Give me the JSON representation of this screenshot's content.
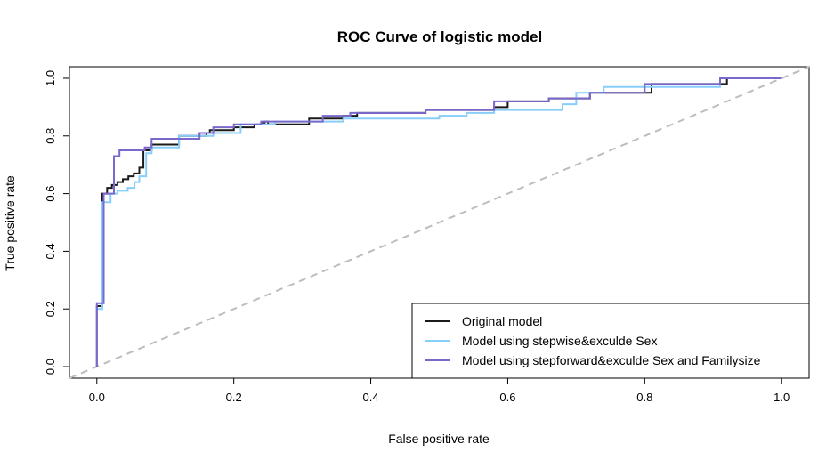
{
  "chart_data": {
    "type": "line",
    "title": "ROC Curve of logistic model",
    "xlabel": "False positive rate",
    "ylabel": "True positive rate",
    "xlim": [
      -0.04,
      1.04
    ],
    "ylim": [
      -0.04,
      1.04
    ],
    "xticks": [
      "0.0",
      "0.2",
      "0.4",
      "0.6",
      "0.8",
      "1.0"
    ],
    "yticks": [
      "0.0",
      "0.2",
      "0.4",
      "0.6",
      "0.8",
      "1.0"
    ],
    "grid": false,
    "legend_position": "bottom-right",
    "reference_line": {
      "x": [
        0,
        1
      ],
      "y": [
        0,
        1
      ],
      "color": "#bdbdbd",
      "style": "dashed"
    },
    "series": [
      {
        "name": "Original model",
        "color": "#1a1a1a",
        "x": [
          0,
          0,
          0.008,
          0.008,
          0.015,
          0.015,
          0.022,
          0.022,
          0.03,
          0.03,
          0.038,
          0.038,
          0.046,
          0.046,
          0.054,
          0.054,
          0.062,
          0.062,
          0.068,
          0.068,
          0.08,
          0.08,
          0.12,
          0.12,
          0.16,
          0.16,
          0.165,
          0.165,
          0.2,
          0.2,
          0.23,
          0.23,
          0.24,
          0.24,
          0.245,
          0.245,
          0.25,
          0.25,
          0.31,
          0.31,
          0.36,
          0.36,
          0.38,
          0.38,
          0.48,
          0.48,
          0.58,
          0.58,
          0.6,
          0.6,
          0.66,
          0.66,
          0.72,
          0.72,
          0.81,
          0.81,
          0.92,
          0.92,
          1.0
        ],
        "y": [
          0,
          0.21,
          0.21,
          0.6,
          0.6,
          0.62,
          0.62,
          0.63,
          0.63,
          0.64,
          0.64,
          0.65,
          0.65,
          0.66,
          0.66,
          0.67,
          0.67,
          0.69,
          0.69,
          0.75,
          0.75,
          0.77,
          0.77,
          0.8,
          0.8,
          0.81,
          0.81,
          0.82,
          0.82,
          0.83,
          0.83,
          0.84,
          0.84,
          0.845,
          0.845,
          0.85,
          0.85,
          0.84,
          0.84,
          0.86,
          0.86,
          0.87,
          0.87,
          0.88,
          0.88,
          0.89,
          0.89,
          0.9,
          0.9,
          0.92,
          0.92,
          0.93,
          0.93,
          0.95,
          0.95,
          0.98,
          0.98,
          1.0,
          1.0
        ]
      },
      {
        "name": "Model using stepwise&exculde Sex",
        "color": "#87cefa",
        "x": [
          0,
          0,
          0.008,
          0.008,
          0.02,
          0.02,
          0.03,
          0.03,
          0.045,
          0.045,
          0.055,
          0.055,
          0.062,
          0.062,
          0.072,
          0.072,
          0.08,
          0.08,
          0.12,
          0.12,
          0.17,
          0.17,
          0.21,
          0.21,
          0.26,
          0.26,
          0.36,
          0.36,
          0.5,
          0.5,
          0.54,
          0.54,
          0.58,
          0.58,
          0.68,
          0.68,
          0.7,
          0.7,
          0.74,
          0.74,
          0.91,
          0.91,
          1.0
        ],
        "y": [
          0,
          0.2,
          0.2,
          0.57,
          0.57,
          0.6,
          0.6,
          0.61,
          0.61,
          0.62,
          0.62,
          0.64,
          0.64,
          0.66,
          0.66,
          0.74,
          0.74,
          0.76,
          0.76,
          0.8,
          0.8,
          0.81,
          0.81,
          0.84,
          0.84,
          0.85,
          0.85,
          0.86,
          0.86,
          0.87,
          0.87,
          0.88,
          0.88,
          0.89,
          0.89,
          0.91,
          0.91,
          0.95,
          0.95,
          0.97,
          0.97,
          1.0,
          1.0
        ]
      },
      {
        "name": "Model using stepforward&exculde Sex and Familysize",
        "color": "#7b68cc",
        "x": [
          0,
          0,
          0.01,
          0.01,
          0.025,
          0.025,
          0.033,
          0.033,
          0.07,
          0.07,
          0.08,
          0.08,
          0.15,
          0.15,
          0.17,
          0.17,
          0.2,
          0.2,
          0.24,
          0.24,
          0.33,
          0.33,
          0.37,
          0.37,
          0.48,
          0.48,
          0.58,
          0.58,
          0.66,
          0.66,
          0.72,
          0.72,
          0.8,
          0.8,
          0.91,
          0.91,
          1.0
        ],
        "y": [
          0,
          0.22,
          0.22,
          0.6,
          0.6,
          0.73,
          0.73,
          0.75,
          0.75,
          0.76,
          0.76,
          0.79,
          0.79,
          0.81,
          0.81,
          0.83,
          0.83,
          0.84,
          0.84,
          0.85,
          0.85,
          0.87,
          0.87,
          0.88,
          0.88,
          0.89,
          0.89,
          0.92,
          0.92,
          0.93,
          0.93,
          0.95,
          0.95,
          0.98,
          0.98,
          1.0,
          1.0
        ]
      }
    ]
  }
}
